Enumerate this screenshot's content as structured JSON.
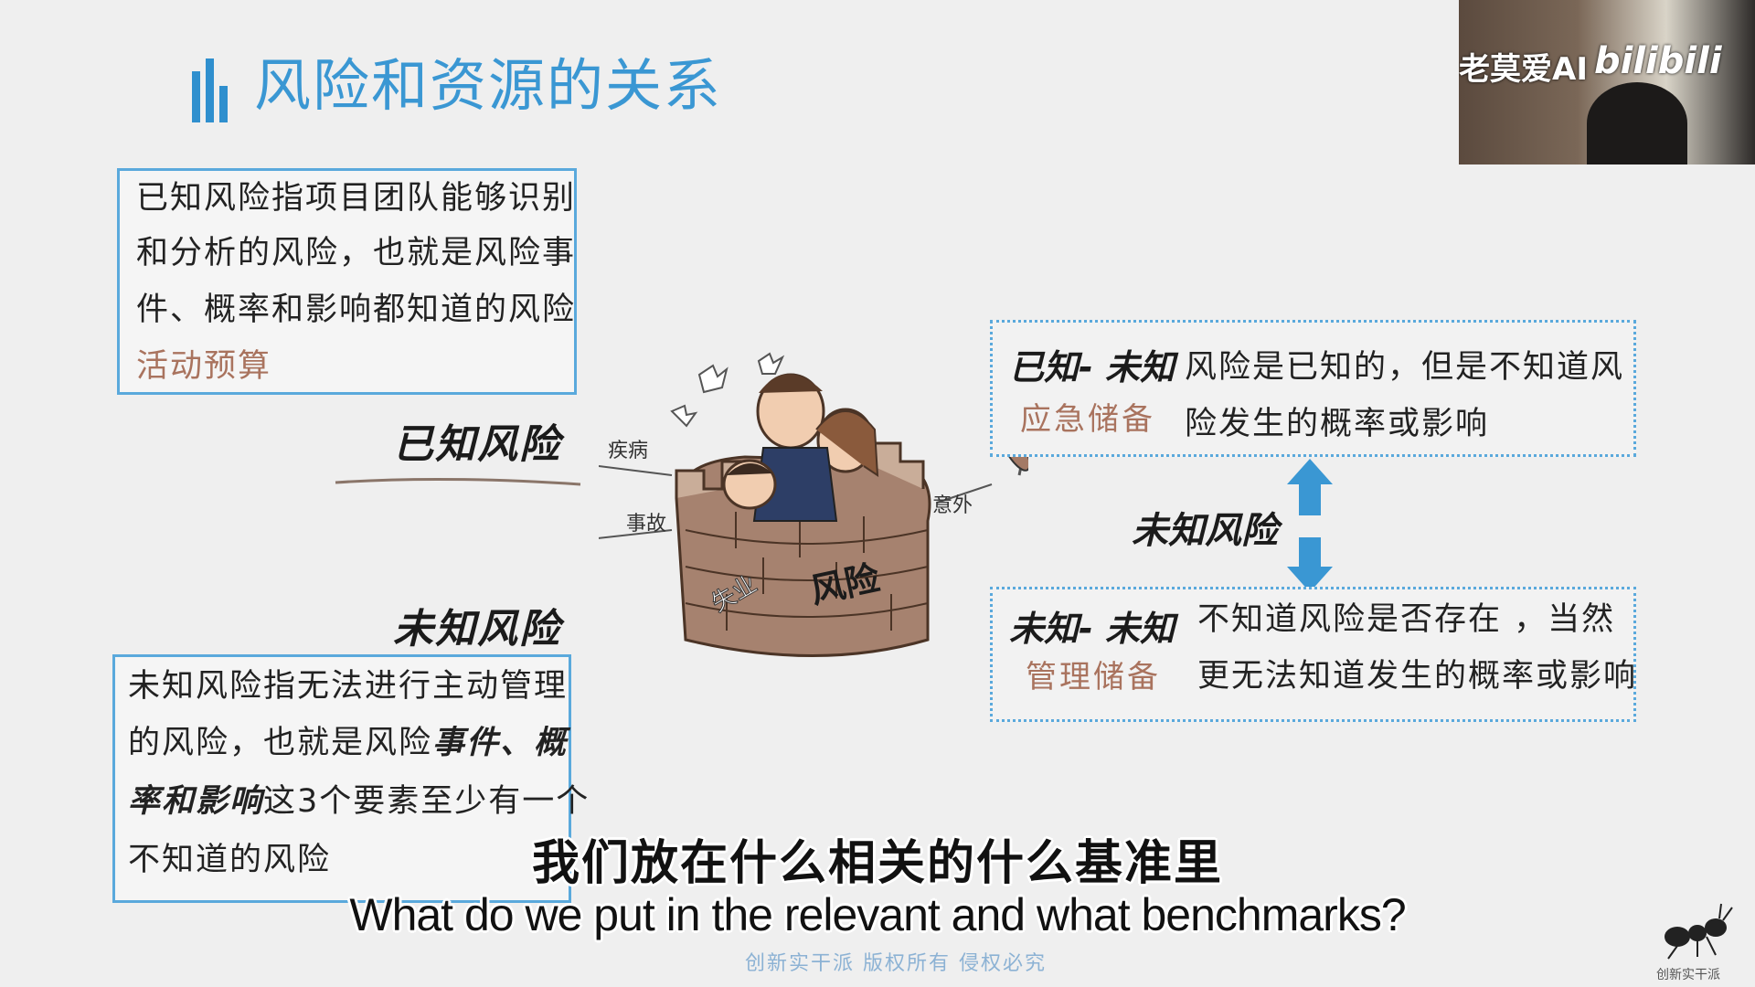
{
  "title": "风险和资源的关系",
  "known_box": {
    "lines": [
      "已知风险指项目团队能够识别",
      "和分析的风险，也就是风险事",
      "件、概率和影响都知道的风险"
    ],
    "reserve": "活动预算"
  },
  "known_heading": "已知风险",
  "unknown_heading": "未知风险",
  "unknown_box": {
    "line1": "未知风险指无法进行主动管理",
    "line2_pre": "的风险，也就是风险",
    "line2_em": "事件、概",
    "line3_em": "率和影响",
    "line3_post": "这3个要素至少有一个",
    "line4": "不知道的风险"
  },
  "illustration": {
    "tower_label": "风险",
    "arrow_labels": [
      "疾病",
      "事故",
      "意外",
      "失业"
    ]
  },
  "known_unknown": {
    "label": "已知- 未知",
    "reserve": "应急储备",
    "lines": [
      "风险是已知的，但是不知道风",
      "险发生的概率或影响"
    ]
  },
  "center_label": "未知风险",
  "unknown_unknown": {
    "label": "未知- 未知",
    "reserve": "管理储备",
    "lines": [
      "不知道风险是否存在 ，当然",
      "更无法知道发生的概率或影响"
    ]
  },
  "webcam": {
    "overlay_text": "老莫爱AI",
    "logo": "bilibili"
  },
  "subtitles": {
    "cn": "我们放在什么相关的什么基准里",
    "en": "What do we put in the relevant and what benchmarks?"
  },
  "footer": "创新实干派  版权所有  侵权必究",
  "corner_logo": "创新实干派",
  "colors": {
    "accent_blue": "#3a97d3",
    "box_border": "#5aa9dc",
    "reserve_brown": "#a9735e"
  }
}
